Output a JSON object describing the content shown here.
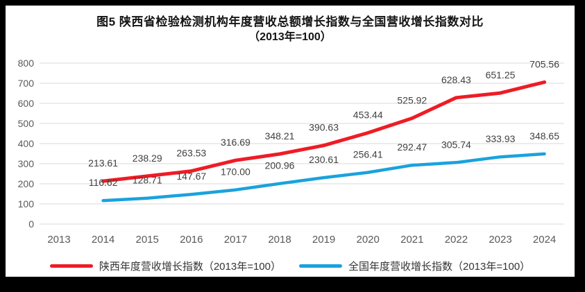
{
  "title": {
    "line1": "图5  陕西省检验检测机构年度营收总额增长指数与全国营收增长指数对比",
    "line2": "（2013年=100）"
  },
  "chart_data": {
    "type": "line",
    "categories": [
      "2013",
      "2014",
      "2015",
      "2016",
      "2017",
      "2018",
      "2019",
      "2020",
      "2021",
      "2022",
      "2023",
      "2024"
    ],
    "series": [
      {
        "name": "陕西年度营收增长指数（2013年=100）",
        "color": "#ee1c25",
        "start_category": "2014",
        "values": [
          213.61,
          238.29,
          263.53,
          316.69,
          348.21,
          390.63,
          453.44,
          525.92,
          628.43,
          651.25,
          705.56
        ]
      },
      {
        "name": "全国年度营收增长指数（2013年=100）",
        "color": "#1aa2dd",
        "start_category": "2014",
        "values": [
          116.62,
          128.71,
          147.67,
          170.0,
          200.96,
          230.61,
          256.41,
          292.47,
          305.74,
          333.93,
          348.65
        ]
      }
    ],
    "ylim": [
      0,
      800
    ],
    "ytick_interval": 100,
    "yticks": [
      0,
      100,
      200,
      300,
      400,
      500,
      600,
      700,
      800
    ],
    "grid": true,
    "data_labels": true,
    "data_label_decimals": 2,
    "legend_position": "bottom"
  },
  "colors": {
    "frame_border": "#000000",
    "canvas_bg": "#ffffff",
    "gridline": "#d9d9d9",
    "axis_text": "#595959",
    "data_label_text": "#404040",
    "title_text": "#141414"
  }
}
